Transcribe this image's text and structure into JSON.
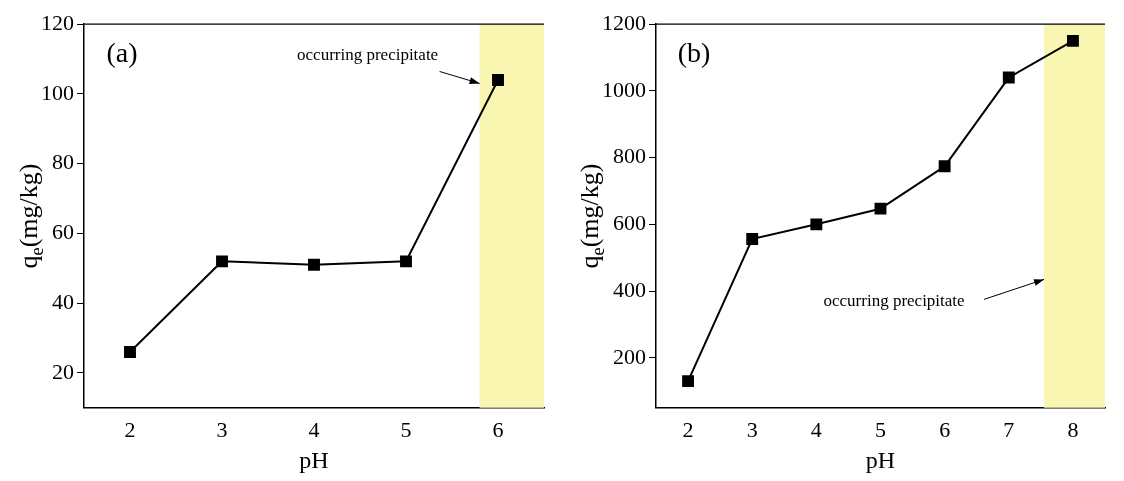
{
  "chart_data": [
    {
      "type": "line",
      "xlabel": "pH",
      "ylabel": "q$_{e}$(mg/kg)",
      "x": [
        2,
        3,
        4,
        5,
        6
      ],
      "marker": "square",
      "line_style": "solid",
      "series": [
        {
          "color": "#000000",
          "values": [
            26,
            52,
            51,
            52,
            104
          ]
        }
      ],
      "xlim": [
        1.5,
        6.5
      ],
      "xticks": [
        2,
        3,
        4,
        5,
        6
      ],
      "ylim": [
        10,
        120
      ],
      "yticks": [
        20,
        40,
        60,
        80,
        100,
        120
      ],
      "bands": [
        {
          "axis": "x",
          "from": 5.8,
          "to": 6.5,
          "color": "#f8f6b0"
        }
      ],
      "annotations": [
        "(a)",
        {
          "text": "occurring precipitate",
          "x": 5.8,
          "y": 103
        }
      ],
      "grid": false,
      "legend": false
    },
    {
      "type": "line",
      "xlabel": "pH",
      "ylabel": "q$_{e}$(mg/kg)",
      "x": [
        2,
        3,
        4,
        5,
        6,
        7,
        8
      ],
      "marker": "square",
      "line_style": "solid",
      "series": [
        {
          "color": "#000000",
          "values": [
            130,
            556,
            600,
            647,
            774,
            1040,
            1150
          ]
        }
      ],
      "xlim": [
        1.5,
        8.5
      ],
      "xticks": [
        2,
        3,
        4,
        5,
        6,
        7,
        8
      ],
      "ylim": [
        50,
        1200
      ],
      "yticks": [
        200,
        400,
        600,
        800,
        1000,
        1200
      ],
      "bands": [
        {
          "axis": "x",
          "from": 7.55,
          "to": 8.5,
          "color": "#f8f6b0"
        }
      ],
      "annotations": [
        "(b)",
        {
          "text": "occurring precipitate",
          "x": 7.55,
          "y": 435
        }
      ],
      "grid": false,
      "legend": false
    }
  ]
}
